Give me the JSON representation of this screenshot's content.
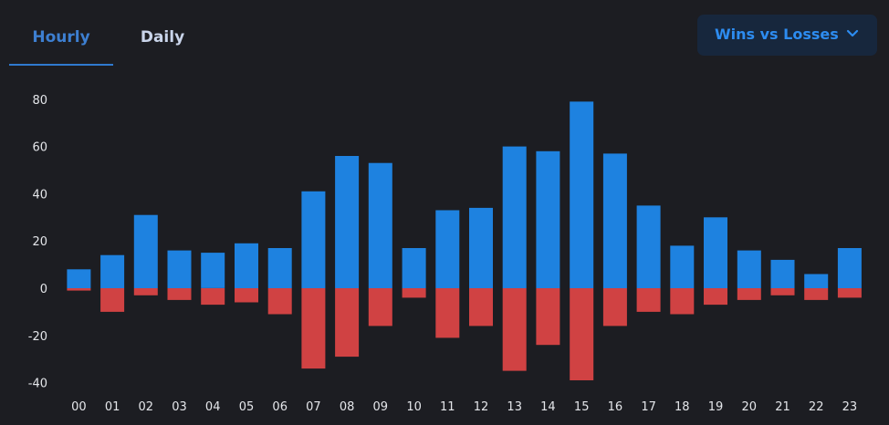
{
  "tabs": [
    {
      "label": "Hourly",
      "active": true
    },
    {
      "label": "Daily",
      "active": false
    }
  ],
  "dropdown": {
    "label": "Wins vs Losses",
    "icon": "chevron-down-icon"
  },
  "colors": {
    "wins": "#1e82e0",
    "losses": "#d04243",
    "background": "#1c1d22",
    "accent": "#2f79cf"
  },
  "chart_data": {
    "type": "bar",
    "title": "",
    "xlabel": "",
    "ylabel": "",
    "categories": [
      "00",
      "01",
      "02",
      "03",
      "04",
      "05",
      "06",
      "07",
      "08",
      "09",
      "10",
      "11",
      "12",
      "13",
      "14",
      "15",
      "16",
      "17",
      "18",
      "19",
      "20",
      "21",
      "22",
      "23"
    ],
    "series": [
      {
        "values": [
          8,
          14,
          31,
          16,
          15,
          19,
          17,
          41,
          56,
          53,
          17,
          33,
          34,
          60,
          58,
          79,
          57,
          35,
          18,
          30,
          16,
          12,
          6,
          17
        ],
        "color": "#1e82e0"
      },
      {
        "values": [
          -1,
          -10,
          -3,
          -5,
          -7,
          -6,
          -11,
          -34,
          -29,
          -16,
          -4,
          -21,
          -16,
          -35,
          -24,
          -39,
          -16,
          -10,
          -11,
          -7,
          -5,
          -3,
          -5,
          -4
        ],
        "color": "#d04243"
      }
    ],
    "y_ticks": [
      "80",
      "60",
      "40",
      "20",
      "0",
      "-20",
      "-40"
    ],
    "ylim": [
      -44,
      88
    ],
    "stacked": true,
    "legend": "none",
    "grid": false
  }
}
